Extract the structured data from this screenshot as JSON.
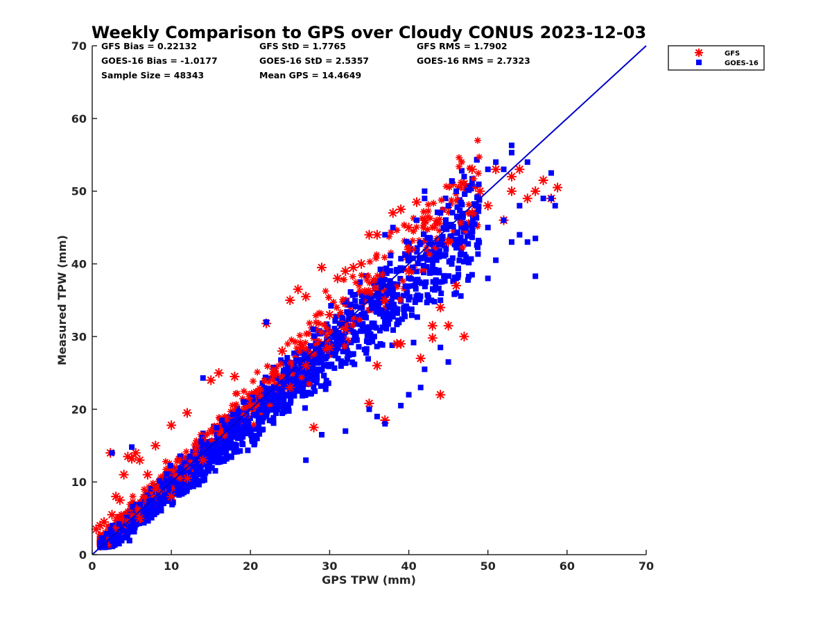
{
  "chart_data": {
    "type": "scatter",
    "title": "Weekly Comparison to GPS over Cloudy CONUS 2023-12-03",
    "xlabel": "GPS TPW (mm)",
    "ylabel": "Measured TPW (mm)",
    "xlim": [
      0,
      70
    ],
    "ylim": [
      0,
      70
    ],
    "xticks": [
      0,
      10,
      20,
      30,
      40,
      50,
      60,
      70
    ],
    "yticks": [
      0,
      10,
      20,
      30,
      40,
      50,
      60,
      70
    ],
    "grid": false,
    "legend_position": "outside top-right",
    "reference_line": {
      "x": [
        0,
        70
      ],
      "y": [
        0,
        70
      ],
      "color": "#0000cc"
    },
    "stats": [
      [
        "GFS Bias = 0.22132",
        "GFS StD = 1.7765",
        "GFS RMS = 1.7902"
      ],
      [
        "GOES-16 Bias = -1.0177",
        "GOES-16 StD = 2.5357",
        "GOES-16 RMS = 2.7323"
      ],
      [
        "Sample Size = 48343",
        "Mean GPS = 14.4649",
        ""
      ]
    ],
    "series": [
      {
        "name": "GFS",
        "marker": "asterisk",
        "color": "#ff0000",
        "points": [
          [
            0.5,
            3.5
          ],
          [
            1,
            4
          ],
          [
            1.5,
            4.5
          ],
          [
            2.3,
            14
          ],
          [
            2.5,
            5.5
          ],
          [
            3,
            8
          ],
          [
            3.5,
            7.5
          ],
          [
            4,
            11
          ],
          [
            4.5,
            13.5
          ],
          [
            5,
            13.2
          ],
          [
            5.5,
            14
          ],
          [
            6,
            13
          ],
          [
            7,
            11
          ],
          [
            8,
            15
          ],
          [
            10,
            17.8
          ],
          [
            12,
            19.5
          ],
          [
            15,
            24
          ],
          [
            16,
            25
          ],
          [
            18,
            24.5
          ],
          [
            22,
            31.8
          ],
          [
            24,
            28
          ],
          [
            25,
            35
          ],
          [
            26,
            36.5
          ],
          [
            27,
            35.5
          ],
          [
            28,
            17.5
          ],
          [
            29,
            39.5
          ],
          [
            30,
            33
          ],
          [
            31,
            38
          ],
          [
            32,
            39
          ],
          [
            33,
            39.5
          ],
          [
            34,
            40
          ],
          [
            35,
            44
          ],
          [
            35,
            20.8
          ],
          [
            36,
            44
          ],
          [
            37,
            18.5
          ],
          [
            37,
            35
          ],
          [
            38,
            47
          ],
          [
            38.5,
            29
          ],
          [
            39,
            47.5
          ],
          [
            39,
            29
          ],
          [
            40,
            45
          ],
          [
            40,
            42
          ],
          [
            41,
            48.5
          ],
          [
            41.5,
            27
          ],
          [
            42,
            46
          ],
          [
            43,
            31.5
          ],
          [
            43,
            29.8
          ],
          [
            45,
            31.5
          ],
          [
            44,
            34
          ],
          [
            45,
            43
          ],
          [
            46,
            37
          ],
          [
            47,
            51
          ],
          [
            48,
            53
          ],
          [
            49,
            50
          ],
          [
            50,
            48
          ],
          [
            51,
            53
          ],
          [
            52,
            46
          ],
          [
            53,
            52
          ],
          [
            54,
            53
          ],
          [
            55,
            49
          ],
          [
            56,
            50
          ],
          [
            57,
            51.5
          ],
          [
            58,
            49
          ],
          [
            58.8,
            50.5
          ],
          [
            47,
            30
          ],
          [
            44,
            22
          ],
          [
            36,
            26
          ],
          [
            27,
            26
          ],
          [
            10,
            8
          ],
          [
            8,
            9
          ],
          [
            20,
            20.5
          ],
          [
            25,
            23
          ],
          [
            32,
            31
          ],
          [
            14,
            13
          ],
          [
            6,
            5
          ],
          [
            30,
            28.5
          ],
          [
            12,
            10.5
          ],
          [
            40,
            39
          ],
          [
            48,
            47
          ],
          [
            53,
            50
          ]
        ]
      },
      {
        "name": "GOES-16",
        "marker": "square",
        "color": "#0000ff",
        "points": [
          [
            2.5,
            14
          ],
          [
            5,
            14.8
          ],
          [
            14,
            24.3
          ],
          [
            22,
            32
          ],
          [
            25,
            22
          ],
          [
            27,
            13
          ],
          [
            29,
            16.5
          ],
          [
            32,
            17
          ],
          [
            35,
            20
          ],
          [
            36,
            19
          ],
          [
            37,
            18
          ],
          [
            39,
            20.5
          ],
          [
            40,
            22
          ],
          [
            41.5,
            23
          ],
          [
            42,
            25.5
          ],
          [
            44,
            28.5
          ],
          [
            45,
            26.5
          ],
          [
            46,
            38
          ],
          [
            48,
            38.5
          ],
          [
            50,
            38
          ],
          [
            51,
            40.5
          ],
          [
            53,
            43
          ],
          [
            54,
            44
          ],
          [
            55,
            43
          ],
          [
            56,
            38.3
          ],
          [
            56,
            43.5
          ],
          [
            58,
            49
          ],
          [
            58.5,
            48
          ],
          [
            57,
            49
          ],
          [
            58,
            52.5
          ],
          [
            55,
            54
          ],
          [
            53,
            56.3
          ],
          [
            53,
            55.3
          ],
          [
            52,
            53
          ],
          [
            51,
            54
          ],
          [
            50,
            53
          ],
          [
            48,
            51
          ],
          [
            47,
            52
          ],
          [
            46,
            50
          ],
          [
            45,
            48
          ],
          [
            44,
            47
          ],
          [
            42,
            49
          ],
          [
            42,
            50
          ],
          [
            41,
            46
          ],
          [
            38,
            45
          ],
          [
            37,
            44
          ],
          [
            44,
            35
          ],
          [
            46,
            36
          ],
          [
            50,
            45
          ],
          [
            52,
            46
          ],
          [
            54,
            48
          ]
        ]
      }
    ]
  },
  "legend": {
    "entries": [
      {
        "label": "GFS",
        "marker": "asterisk",
        "color": "#ff0000"
      },
      {
        "label": "GOES-16",
        "marker": "square",
        "color": "#0000ff"
      }
    ]
  }
}
